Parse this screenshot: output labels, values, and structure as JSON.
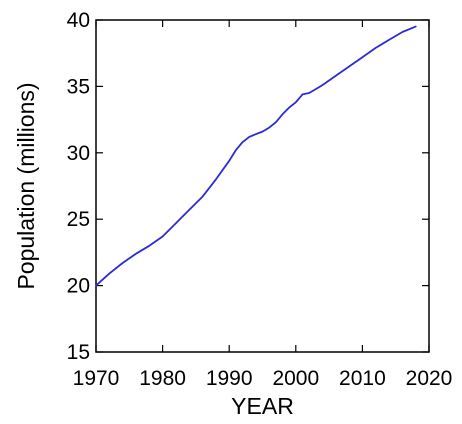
{
  "chart_data": {
    "type": "line",
    "title": "",
    "xlabel": "YEAR",
    "ylabel": "Population (millions)",
    "xlim": [
      1970,
      2020
    ],
    "ylim": [
      15,
      40
    ],
    "xticks": [
      1970,
      1980,
      1990,
      2000,
      2010,
      2020
    ],
    "yticks": [
      15,
      20,
      25,
      30,
      35,
      40
    ],
    "grid": false,
    "legend": "none",
    "line_color": "#2b2bd6",
    "series": [
      {
        "x": [
          1970,
          1972,
          1974,
          1976,
          1978,
          1980,
          1982,
          1984,
          1986,
          1988,
          1990,
          1991,
          1992,
          1993,
          1994,
          1995,
          1996,
          1997,
          1998,
          1999,
          2000,
          2001,
          2002,
          2003,
          2004,
          2006,
          2008,
          2010,
          2012,
          2014,
          2016,
          2018
        ],
        "y": [
          20.0,
          20.9,
          21.7,
          22.4,
          23.0,
          23.7,
          24.7,
          25.7,
          26.7,
          28.0,
          29.4,
          30.2,
          30.8,
          31.2,
          31.4,
          31.6,
          31.9,
          32.3,
          32.9,
          33.4,
          33.8,
          34.4,
          34.5,
          34.8,
          35.1,
          35.8,
          36.5,
          37.2,
          37.9,
          38.5,
          39.1,
          39.5
        ]
      }
    ]
  }
}
